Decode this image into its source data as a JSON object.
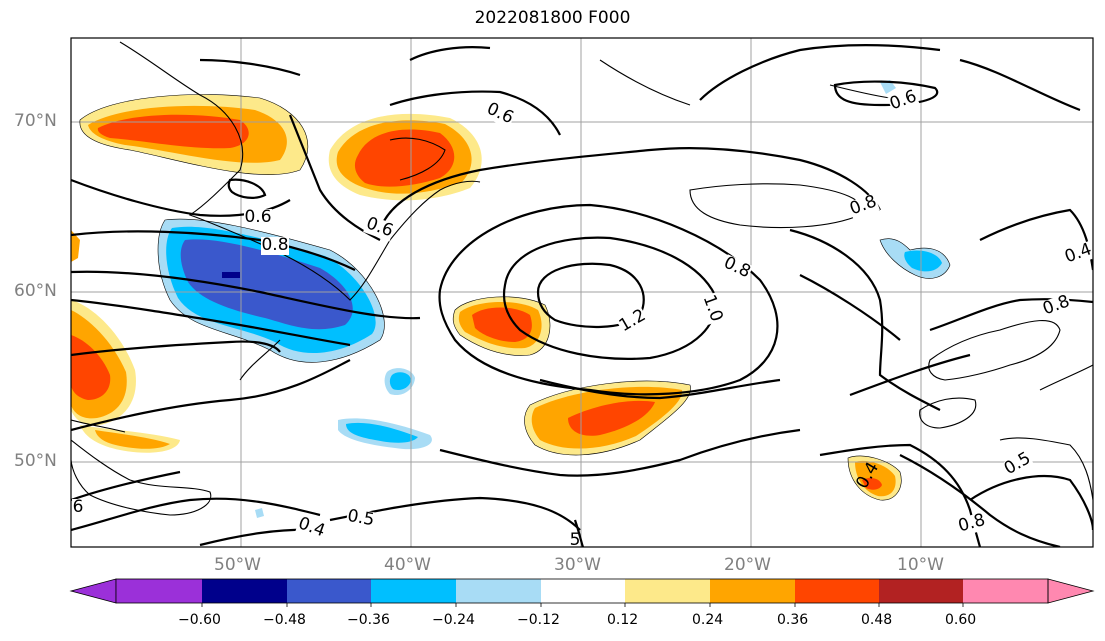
{
  "title": "2022081800 F000",
  "lat_labels": [
    "70°N",
    "60°N",
    "50°N"
  ],
  "lon_labels": [
    "50°W",
    "40°W",
    "30°W",
    "20°W",
    "10°W"
  ],
  "contour_labels": [
    "0.6",
    "0.6",
    "0.6",
    "0.6",
    "0.8",
    "0.8",
    "0.8",
    "0.8",
    "0.8",
    "1.0",
    "1.2",
    "0.5",
    "0.4",
    "0.4",
    "0.5",
    "0.4",
    "6",
    "5"
  ],
  "colorbar": {
    "tick_labels": [
      "−0.60",
      "−0.48",
      "−0.36",
      "−0.24",
      "−0.12",
      "0.12",
      "0.24",
      "0.36",
      "0.48",
      "0.60"
    ],
    "colors": [
      "#9b30d9",
      "#00008b",
      "#3a58cc",
      "#00bfff",
      "#a8dcf5",
      "#ffffff",
      "#fde98a",
      "#ffa500",
      "#ff4500",
      "#b22222",
      "#ff88b0"
    ]
  }
}
